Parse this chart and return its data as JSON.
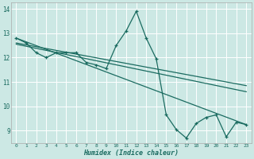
{
  "xlabel": "Humidex (Indice chaleur)",
  "ylabel": "",
  "bg_color": "#cce8e4",
  "grid_color": "#ffffff",
  "line_color": "#1a6b60",
  "xlim": [
    -0.5,
    23.5
  ],
  "ylim": [
    8.5,
    14.25
  ],
  "yticks": [
    9,
    10,
    11,
    12,
    13,
    14
  ],
  "xticks": [
    0,
    1,
    2,
    3,
    4,
    5,
    6,
    7,
    8,
    9,
    10,
    11,
    12,
    13,
    14,
    15,
    16,
    17,
    18,
    19,
    20,
    21,
    22,
    23
  ],
  "series": [
    [
      0,
      12.8
    ],
    [
      1,
      12.6
    ],
    [
      2,
      12.2
    ],
    [
      3,
      12.0
    ],
    [
      4,
      12.2
    ],
    [
      5,
      12.2
    ],
    [
      6,
      12.2
    ],
    [
      7,
      11.8
    ],
    [
      8,
      11.7
    ],
    [
      9,
      11.55
    ],
    [
      10,
      12.5
    ],
    [
      11,
      13.1
    ],
    [
      12,
      13.9
    ],
    [
      13,
      12.8
    ],
    [
      14,
      11.95
    ],
    [
      15,
      9.65
    ],
    [
      16,
      9.05
    ],
    [
      17,
      8.7
    ],
    [
      18,
      9.3
    ],
    [
      19,
      9.55
    ],
    [
      20,
      9.65
    ],
    [
      21,
      8.75
    ],
    [
      22,
      9.35
    ],
    [
      23,
      9.25
    ]
  ],
  "linear1": [
    [
      0,
      12.8
    ],
    [
      23,
      9.25
    ]
  ],
  "linear2": [
    [
      0,
      12.6
    ],
    [
      23,
      10.85
    ]
  ],
  "linear3": [
    [
      0,
      12.55
    ],
    [
      23,
      10.6
    ]
  ]
}
